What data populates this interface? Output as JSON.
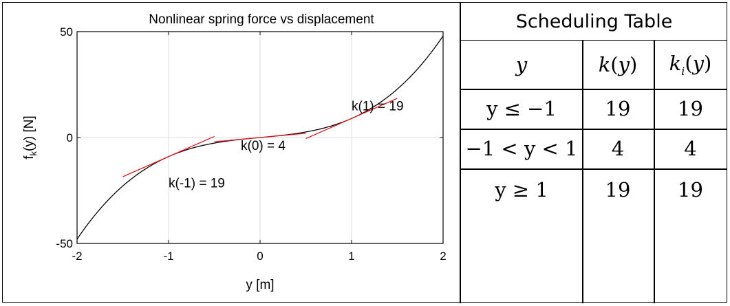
{
  "chart_data": {
    "type": "line",
    "title": "Nonlinear spring force vs displacement",
    "xlabel": "y [m]",
    "ylabel": "f_k(y) [N]",
    "xlim": [
      -2,
      2
    ],
    "ylim": [
      -50,
      50
    ],
    "xticks": [
      "-2",
      "-1",
      "0",
      "1",
      "2"
    ],
    "yticks": [
      "-50",
      "0",
      "50"
    ],
    "grid": true,
    "series": [
      {
        "name": "f_k(y)",
        "color": "#000000",
        "x": [
          -2,
          -1.5,
          -1,
          -0.5,
          0,
          0.5,
          1,
          1.5,
          2
        ],
        "y": [
          -48,
          -25.5,
          -9,
          -2.5,
          0,
          2.5,
          9,
          25.5,
          48
        ]
      }
    ],
    "tangents": [
      {
        "label": "k(-1) = 19",
        "x0": -1,
        "y0": -9,
        "slope": 19,
        "xrange": [
          -1.5,
          -0.5
        ],
        "color": "#e8141c"
      },
      {
        "label": "k(0) = 4",
        "x0": 0,
        "y0": 0,
        "slope": 4,
        "xrange": [
          -0.5,
          0.5
        ],
        "color": "#e8141c"
      },
      {
        "label": "k(1) = 19",
        "x0": 1,
        "y0": 9,
        "slope": 19,
        "xrange": [
          0.5,
          1.5
        ],
        "color": "#e8141c"
      }
    ]
  },
  "table": {
    "title": "Scheduling Table",
    "headers": [
      "y",
      "k(y)",
      "k_i(y)"
    ],
    "rows": [
      {
        "condition": "y ≤ −1",
        "k": "19",
        "ki": "19"
      },
      {
        "condition": "−1 < y < 1",
        "k": "4",
        "ki": "4"
      },
      {
        "condition": "y ≥ 1",
        "k": "19",
        "ki": "19"
      }
    ]
  }
}
